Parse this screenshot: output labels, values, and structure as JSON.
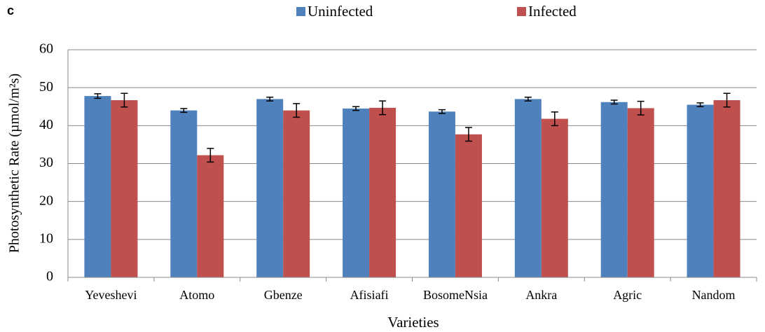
{
  "chart_data": {
    "type": "bar",
    "panel_label": "c",
    "x_label": "Varieties",
    "y_label": "Photosynthetic Rate (µmol/m²s)",
    "categories": [
      "Yeveshevi",
      "Atomo",
      "Gbenze",
      "Afisiafi",
      "BosomeNsia",
      "Ankra",
      "Agric",
      "Nandom"
    ],
    "series": [
      {
        "name": "Uninfected",
        "color": "#4f81bd",
        "values": [
          47.8,
          44.0,
          47.0,
          44.5,
          43.7,
          47.0,
          46.2,
          45.5
        ],
        "errors": [
          0.6,
          0.5,
          0.5,
          0.5,
          0.5,
          0.5,
          0.5,
          0.5
        ]
      },
      {
        "name": "Infected",
        "color": "#c0504d",
        "values": [
          46.7,
          32.2,
          44.0,
          44.7,
          37.7,
          41.8,
          44.6,
          46.7
        ],
        "errors": [
          1.8,
          1.8,
          1.8,
          1.8,
          1.8,
          1.8,
          1.8,
          1.8
        ]
      }
    ],
    "ylim": [
      0,
      60
    ],
    "yticks": [
      0,
      10,
      20,
      30,
      40,
      50,
      60
    ],
    "grid": true,
    "legend": "top"
  }
}
